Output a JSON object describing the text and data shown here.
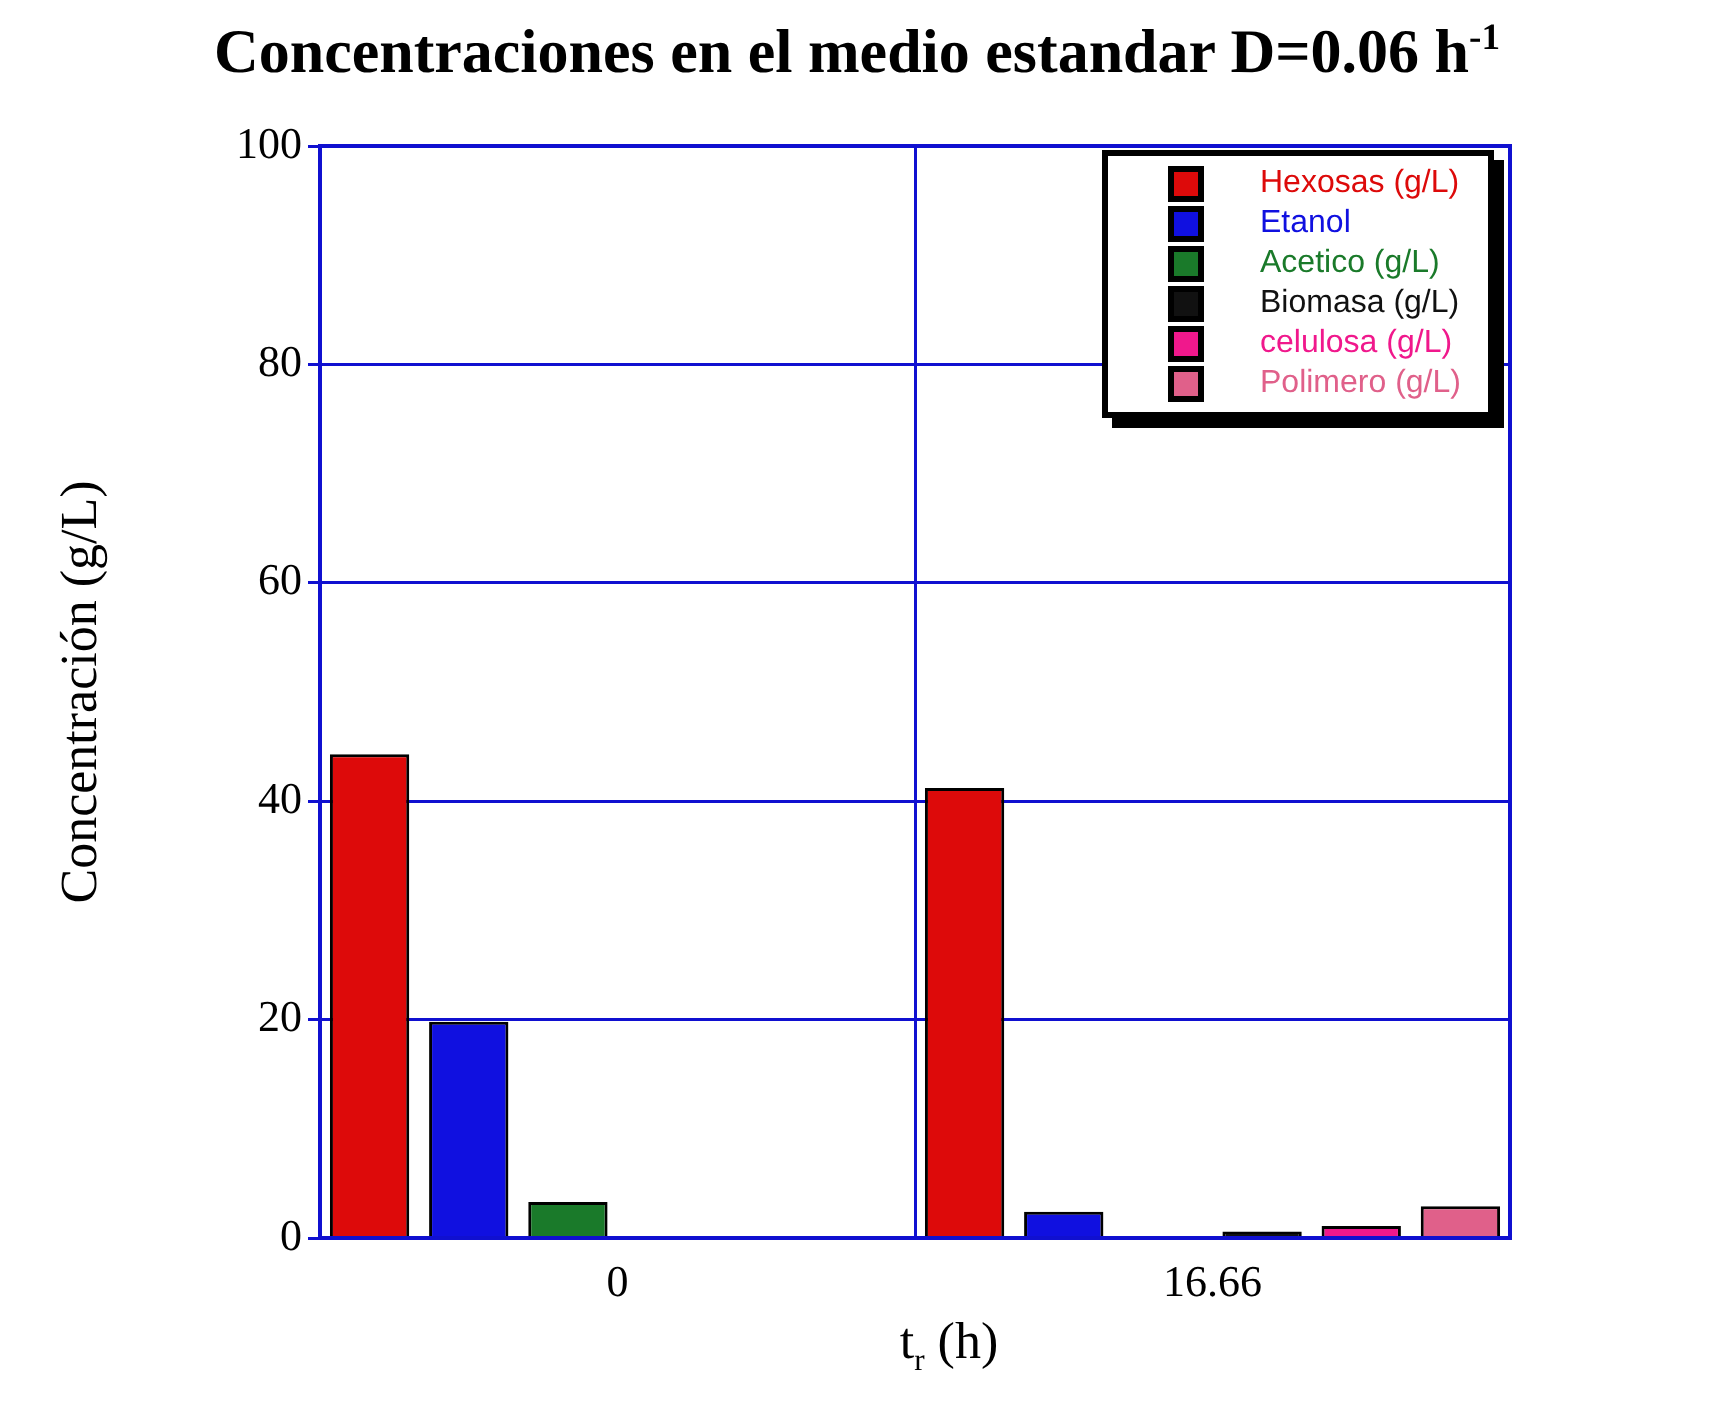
{
  "chart_data": {
    "type": "bar",
    "title": "Concentraciones en el medio estandar D=0.06 h$^{-1}$",
    "xlabel": "t$_{r}$ (h)",
    "ylabel": "Concentración (g/L)",
    "categories": [
      "0",
      "16.66"
    ],
    "series": [
      {
        "name": "Hexosas (g/L)",
        "color": "#dd0a0a",
        "values": [
          44.3,
          41.2
        ]
      },
      {
        "name": "Etanol",
        "color": "#1010e0",
        "values": [
          19.8,
          2.4
        ]
      },
      {
        "name": "Acetico (g/L)",
        "color": "#1a7a2a",
        "values": [
          3.3,
          null
        ]
      },
      {
        "name": "Biomasa (g/L)",
        "color": "#111111",
        "values": [
          null,
          0.6
        ]
      },
      {
        "name": "celulosa (g/L)",
        "color": "#f0188c",
        "values": [
          null,
          1.1
        ]
      },
      {
        "name": "Polimero (g/L)",
        "color": "#e0608a",
        "values": [
          null,
          2.9
        ]
      }
    ],
    "ylim": [
      0,
      100
    ],
    "yticks": [
      0,
      20,
      40,
      60,
      80,
      100
    ],
    "grid": true,
    "legend": "top right"
  }
}
